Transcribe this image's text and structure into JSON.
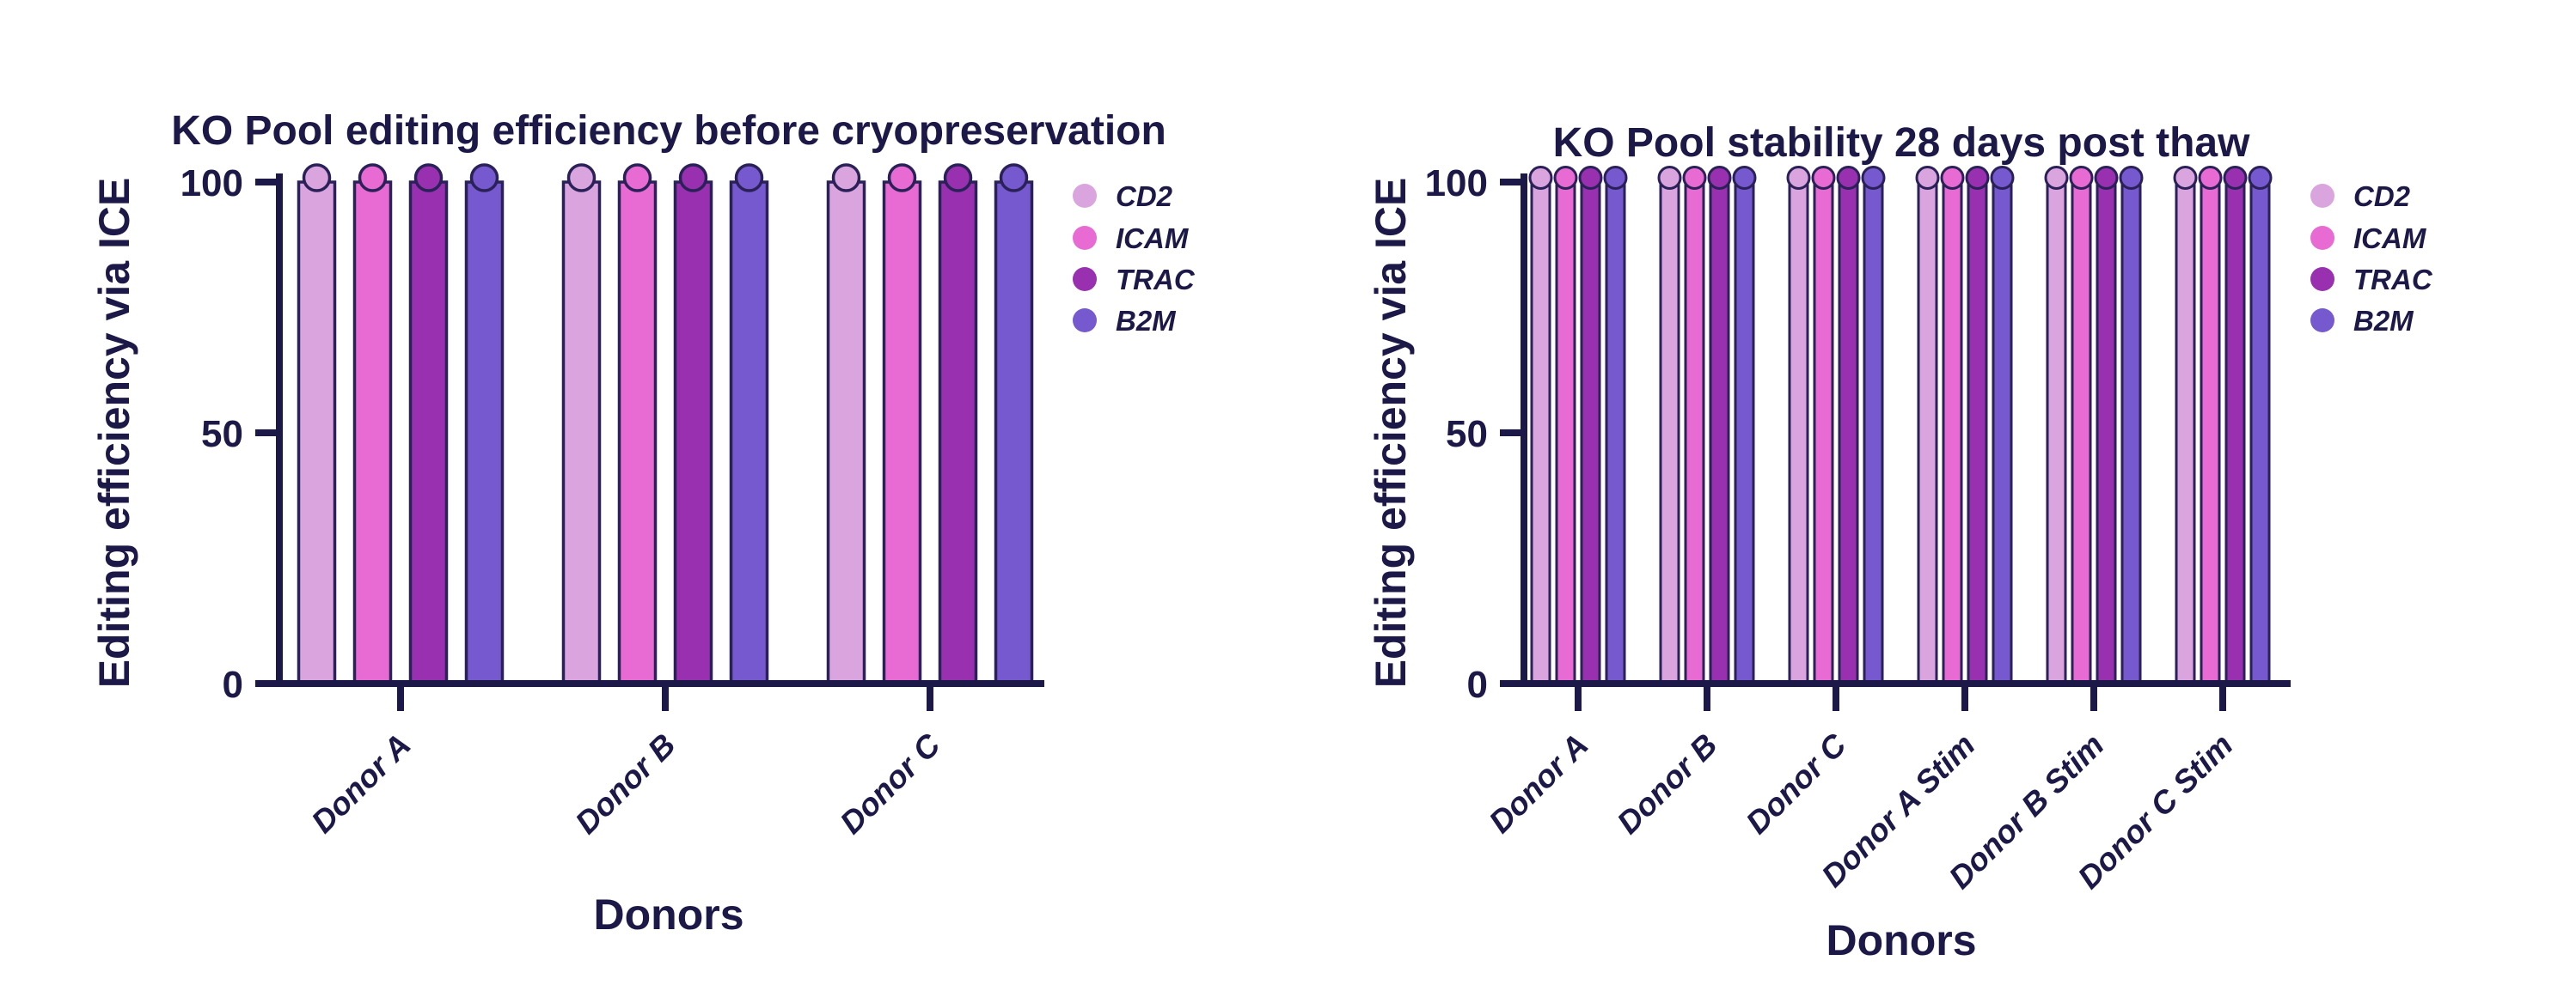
{
  "page": {
    "background": "#ffffff"
  },
  "style": {
    "ink": "#1c1847",
    "axis_color": "#1c1847",
    "bar_outline": "#2a2158",
    "background": "#ffffff"
  },
  "chart_data": [
    {
      "type": "bar",
      "title": "KO Pool editing efficiency before cryopreservation",
      "xlabel": "Donors",
      "ylabel": "Editing efficiency via ICE",
      "ylim": [
        0,
        100
      ],
      "yticks": [
        0,
        50,
        100
      ],
      "grid": false,
      "legend_position": "right",
      "marker": "circle at bar top, value ~100",
      "categories": [
        "Donor A",
        "Donor B",
        "Donor C"
      ],
      "series": [
        {
          "name": "CD2",
          "color": "#daa5de",
          "values": [
            100,
            100,
            100
          ]
        },
        {
          "name": "ICAM",
          "color": "#e76bd2",
          "values": [
            100,
            100,
            100
          ]
        },
        {
          "name": "TRAC",
          "color": "#9930b0",
          "values": [
            100,
            100,
            100
          ]
        },
        {
          "name": "B2M",
          "color": "#7659cf",
          "values": [
            100,
            100,
            100
          ]
        }
      ]
    },
    {
      "type": "bar",
      "title": "KO Pool stability 28 days post thaw",
      "xlabel": "Donors",
      "ylabel": "Editing efficiency via ICE",
      "ylim": [
        0,
        100
      ],
      "yticks": [
        0,
        50,
        100
      ],
      "grid": false,
      "legend_position": "right",
      "marker": "circle at bar top, value ~100",
      "categories": [
        "Donor A",
        "Donor B",
        "Donor C",
        "Donor A Stim",
        "Donor B Stim",
        "Donor C Stim"
      ],
      "series": [
        {
          "name": "CD2",
          "color": "#daa5de",
          "values": [
            100,
            100,
            100,
            100,
            100,
            100
          ]
        },
        {
          "name": "ICAM",
          "color": "#e76bd2",
          "values": [
            100,
            100,
            100,
            100,
            100,
            100
          ]
        },
        {
          "name": "TRAC",
          "color": "#9930b0",
          "values": [
            100,
            100,
            100,
            100,
            100,
            100
          ]
        },
        {
          "name": "B2M",
          "color": "#7659cf",
          "values": [
            100,
            100,
            100,
            100,
            100,
            100
          ]
        }
      ]
    }
  ]
}
